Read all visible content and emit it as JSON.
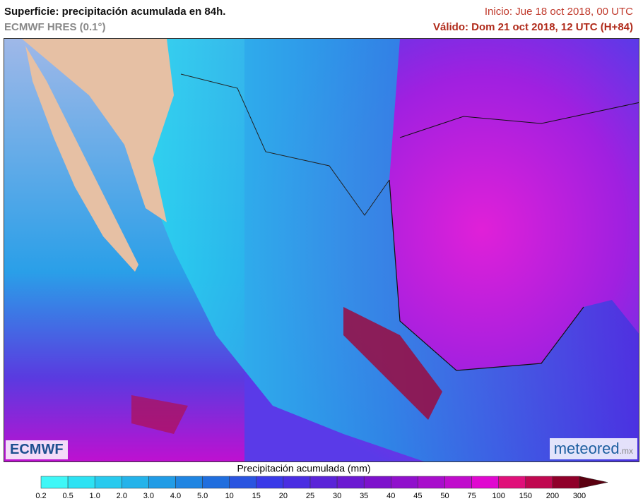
{
  "header": {
    "title": "Superficie: precipitación acumulada en 84h.",
    "model": "ECMWF HRES (0.1°)",
    "init": "Inicio: Jue 18 oct 2018, 00 UTC",
    "valid": "Válido: Dom 21 oct 2018, 12 UTC (H+84)"
  },
  "legend": {
    "title": "Precipitación acumulada (mm)",
    "labels": [
      "0.2",
      "0.5",
      "1.0",
      "2.0",
      "3.0",
      "4.0",
      "5.0",
      "10",
      "15",
      "20",
      "25",
      "30",
      "35",
      "40",
      "45",
      "50",
      "75",
      "100",
      "150",
      "200",
      "300"
    ],
    "colors": [
      "#3ff7f7",
      "#2de2f3",
      "#28caee",
      "#24b3ea",
      "#219ce6",
      "#1f85e2",
      "#206ede",
      "#2a55e0",
      "#3a3ae8",
      "#4a2ee2",
      "#5a24d8",
      "#6b1ad2",
      "#7d12cc",
      "#9010cc",
      "#a80ecc",
      "#c00ccc",
      "#e008d0",
      "#e0107a",
      "#c00850",
      "#90002a",
      "#5a0010"
    ]
  },
  "logos": {
    "left": "ECMWF",
    "right_main": "meteored",
    "right_suffix": ".mx"
  }
}
